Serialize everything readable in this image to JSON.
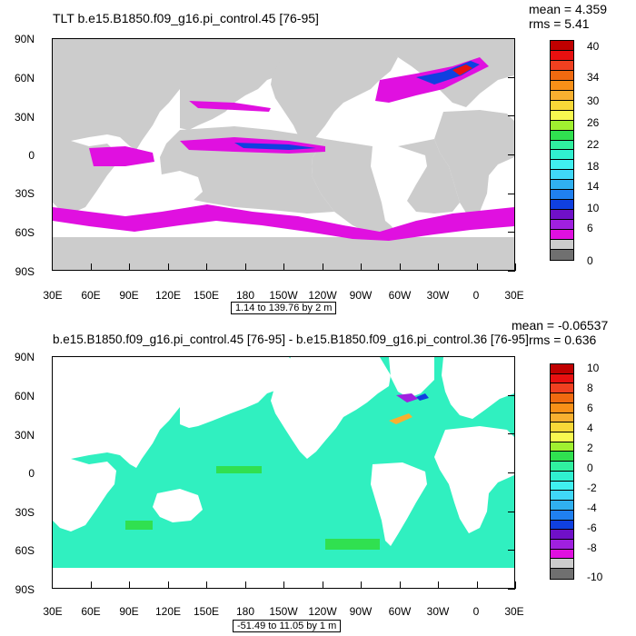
{
  "panel1": {
    "title": "TLT b.e15.B1850.f09_g16.pi_control.45 [76-95]",
    "mean": "mean = 4.359",
    "rms": "rms = 5.41",
    "range": "1.14 to 139.76 by 2 m",
    "lat_labels": [
      "90N",
      "60N",
      "30N",
      "0",
      "30S",
      "60S",
      "90S"
    ],
    "lon_labels": [
      "30E",
      "60E",
      "90E",
      "120E",
      "150E",
      "180",
      "150W",
      "120W",
      "90W",
      "60W",
      "30W",
      "0",
      "30E"
    ],
    "colorbar_labels": [
      "40",
      "34",
      "30",
      "26",
      "22",
      "18",
      "14",
      "10",
      "6",
      "0"
    ],
    "colorbar_colors": [
      "#c00000",
      "#e81010",
      "#f04020",
      "#f06a10",
      "#f89018",
      "#f8b030",
      "#f8d838",
      "#f8f850",
      "#a0f030",
      "#30e050",
      "#30f0a0",
      "#30f0d0",
      "#40f0f0",
      "#40d8f8",
      "#30b0f0",
      "#2080f0",
      "#1040e0",
      "#7010c8",
      "#a020e0",
      "#e010e0",
      "#cccccc",
      "#707070"
    ]
  },
  "panel2": {
    "title": "b.e15.B1850.f09_g16.pi_control.45 [76-95] - b.e15.B1850.f09_g16.pi_control.36 [76-95]",
    "mean": "mean = -0.06537",
    "rms": "rms = 0.636",
    "range": "-51.49 to 11.05 by 1 m",
    "lat_labels": [
      "90N",
      "60N",
      "30N",
      "0",
      "30S",
      "60S",
      "90S"
    ],
    "lon_labels": [
      "30E",
      "60E",
      "90E",
      "120E",
      "150E",
      "180",
      "150W",
      "120W",
      "90W",
      "60W",
      "30W",
      "0",
      "30E"
    ],
    "colorbar_labels": [
      "10",
      "8",
      "6",
      "4",
      "2",
      "0",
      "-2",
      "-4",
      "-6",
      "-8",
      "-10"
    ],
    "colorbar_colors": [
      "#c00000",
      "#e81010",
      "#f04020",
      "#f06a10",
      "#f89018",
      "#f8b030",
      "#f8d838",
      "#f8f850",
      "#a0f030",
      "#30e050",
      "#30f0a0",
      "#30f0d0",
      "#40f0f0",
      "#40d8f8",
      "#30b0f0",
      "#2080f0",
      "#1040e0",
      "#7010c8",
      "#a020e0",
      "#e010e0",
      "#cccccc",
      "#707070"
    ]
  },
  "colors": {
    "land_panel1": "#cccccc",
    "ocean_diff": "#30f0c0"
  }
}
